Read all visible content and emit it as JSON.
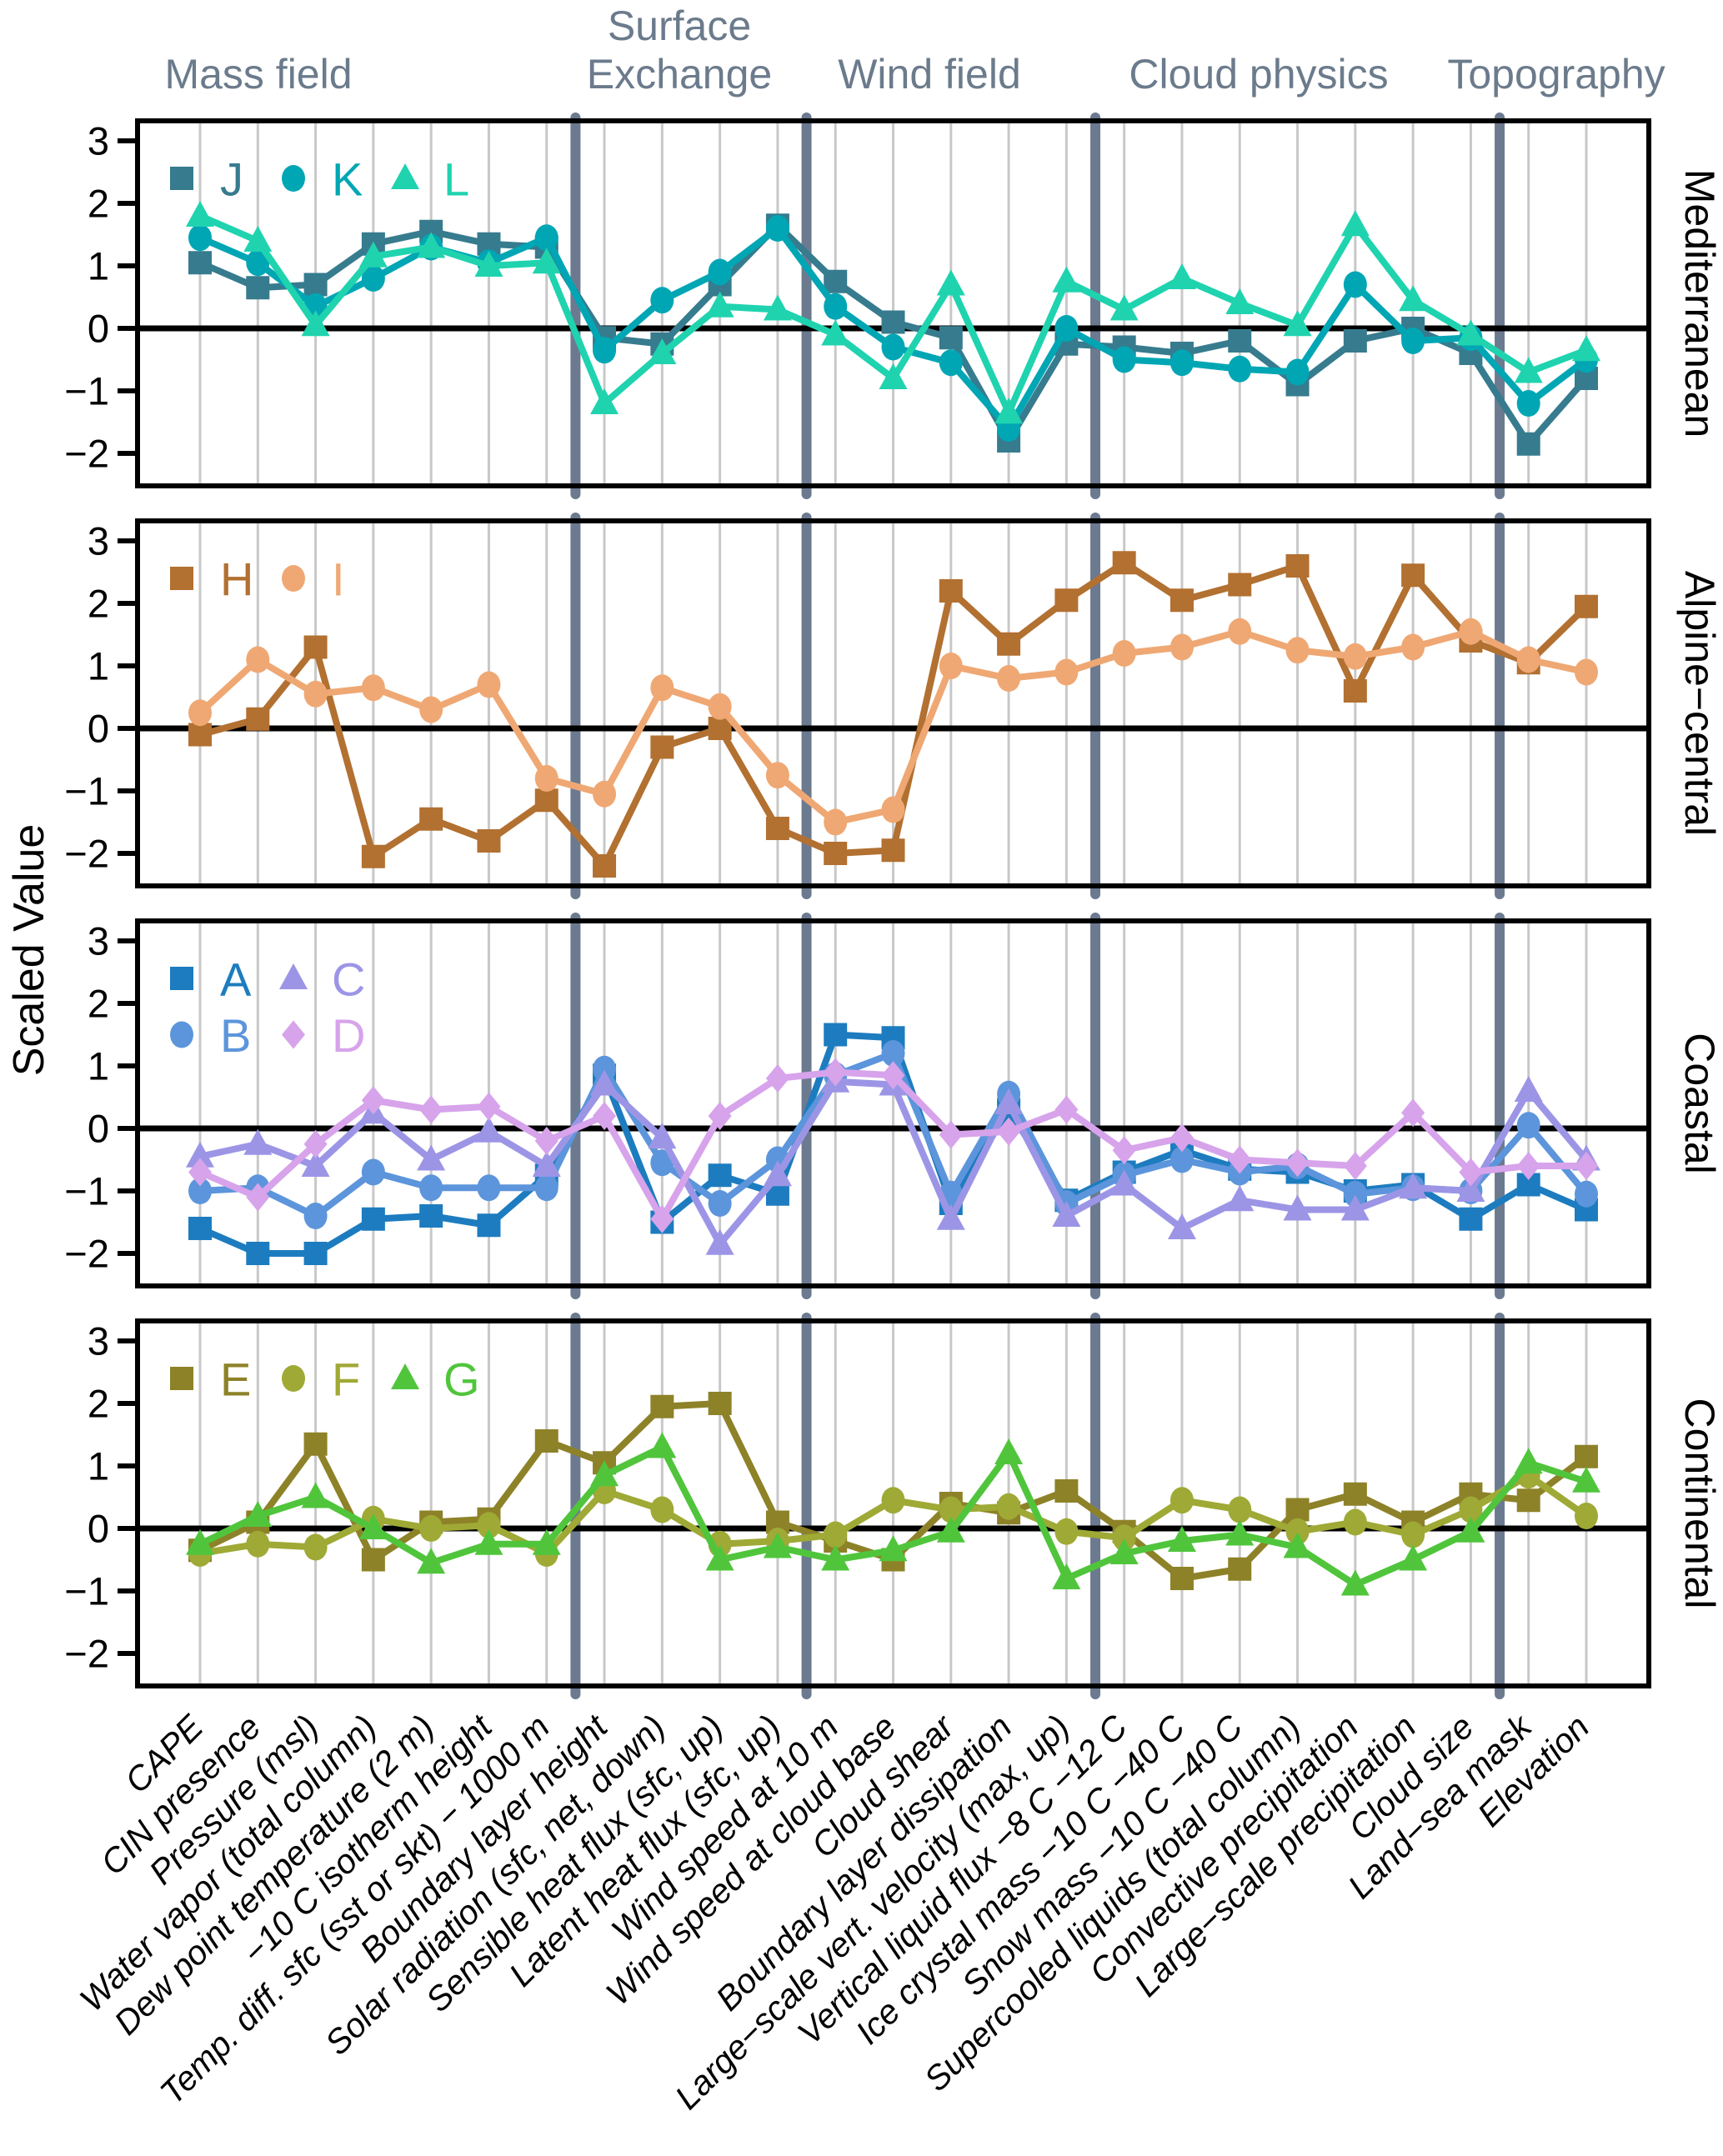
{
  "chart_data": {
    "type": "line",
    "y_axis_label": "Scaled Value",
    "ylim": [
      -2.55,
      3.3
    ],
    "yticks": [
      "3",
      "2",
      "1",
      "0",
      "−1",
      "−2"
    ],
    "ytick_values": [
      3,
      2,
      1,
      0,
      -1,
      -2
    ],
    "grid": true,
    "legend_position": "top-left-inside",
    "style": {
      "grid_color": "#C8C8C8",
      "separator_color": "#6C7A90",
      "header_color": "#6B7B8C",
      "zero_line_color": "#000000",
      "border_color": "#000000",
      "text_color": "#000000"
    },
    "categories": [
      "CAPE",
      "CIN presence",
      "Pressure (msl)",
      "Water vapor (total column)",
      "Dew point temperature (2 m)",
      "−10 C isotherm height",
      "Temp. diff. sfc (sst or skt) − 1000 m",
      "Boundary layer height",
      "Solar radiation (sfc, net, down)",
      "Sensible heat flux (sfc, up)",
      "Latent heat flux (sfc, up)",
      "Wind speed at 10 m",
      "Wind speed at cloud base",
      "Cloud shear",
      "Boundary layer dissipation",
      "Large−scale vert. velocity (max, up)",
      "Vertical liquid flux −8 C −12 C",
      "Ice crystal mass −10 C −40 C",
      "Snow mass −10 C −40 C",
      "Supercooled liquids (total column)",
      "Convective precipitation",
      "Large−scale precipitation",
      "Cloud size",
      "Land−sea mask",
      "Elevation"
    ],
    "groups": [
      {
        "label": "Mass field",
        "lines": [
          "Mass field"
        ],
        "span": [
          0,
          6
        ],
        "label_x": 310
      },
      {
        "label": "Surface Exchange",
        "lines": [
          "Surface",
          "Exchange"
        ],
        "span": [
          7,
          10
        ],
        "label_x": 815
      },
      {
        "label": "Wind field",
        "lines": [
          "Wind field"
        ],
        "span": [
          11,
          15
        ],
        "label_x": 1115
      },
      {
        "label": "Cloud physics",
        "lines": [
          "Cloud physics"
        ],
        "span": [
          16,
          22
        ],
        "label_x": 1510
      },
      {
        "label": "Topography",
        "lines": [
          "Topography"
        ],
        "span": [
          23,
          24
        ],
        "label_x": 1867
      }
    ],
    "panels": [
      {
        "label": "Mediterranean",
        "legend_rows": [
          [
            "J",
            "K",
            "L"
          ]
        ],
        "series": [
          {
            "name": "J",
            "marker": "square",
            "color": "#377B8E",
            "values": [
              1.05,
              0.65,
              0.7,
              1.35,
              1.55,
              1.35,
              1.3,
              -0.15,
              -0.25,
              0.7,
              1.65,
              0.75,
              0.1,
              -0.15,
              -1.8,
              -0.25,
              -0.3,
              -0.4,
              -0.2,
              -0.9,
              -0.2,
              0.0,
              -0.4,
              -1.85,
              -0.8
            ]
          },
          {
            "name": "K",
            "marker": "circle",
            "color": "#00A6B4",
            "values": [
              1.45,
              1.05,
              0.35,
              0.8,
              1.3,
              1.05,
              1.45,
              -0.35,
              0.45,
              0.9,
              1.6,
              0.35,
              -0.3,
              -0.55,
              -1.6,
              0.0,
              -0.5,
              -0.55,
              -0.65,
              -0.7,
              0.7,
              -0.2,
              -0.15,
              -1.2,
              -0.5
            ]
          },
          {
            "name": "L",
            "marker": "triangle",
            "color": "#1FD3AF",
            "values": [
              1.8,
              1.4,
              0.05,
              1.15,
              1.3,
              1.0,
              1.05,
              -1.2,
              -0.4,
              0.35,
              0.3,
              -0.1,
              -0.8,
              0.7,
              -1.35,
              0.75,
              0.3,
              0.8,
              0.4,
              0.05,
              1.65,
              0.45,
              -0.1,
              -0.7,
              -0.35
            ]
          }
        ]
      },
      {
        "label": "Alpine−central",
        "legend_rows": [
          [
            "H",
            "I"
          ]
        ],
        "series": [
          {
            "name": "H",
            "marker": "square",
            "color": "#B27031",
            "values": [
              -0.1,
              0.15,
              1.3,
              -2.05,
              -1.45,
              -1.8,
              -1.15,
              -2.2,
              -0.3,
              0.0,
              -1.6,
              -2.0,
              -1.95,
              2.2,
              1.35,
              2.05,
              2.65,
              2.05,
              2.3,
              2.6,
              0.6,
              2.45,
              1.4,
              1.05,
              1.95
            ]
          },
          {
            "name": "I",
            "marker": "circle",
            "color": "#EFA873",
            "values": [
              0.25,
              1.1,
              0.55,
              0.65,
              0.3,
              0.7,
              -0.8,
              -1.05,
              0.65,
              0.35,
              -0.75,
              -1.5,
              -1.3,
              1.0,
              0.8,
              0.9,
              1.2,
              1.3,
              1.55,
              1.25,
              1.15,
              1.3,
              1.55,
              1.1,
              0.9
            ]
          }
        ]
      },
      {
        "label": "Coastal",
        "legend_rows": [
          [
            "A",
            "C"
          ],
          [
            "B",
            "D"
          ]
        ],
        "series": [
          {
            "name": "A",
            "marker": "square",
            "color": "#1D7CBF",
            "values": [
              -1.6,
              -2.0,
              -2.0,
              -1.45,
              -1.4,
              -1.55,
              -0.75,
              0.85,
              -1.5,
              -0.75,
              -1.05,
              1.5,
              1.45,
              -1.2,
              0.3,
              -1.15,
              -0.7,
              -0.35,
              -0.65,
              -0.7,
              -1.0,
              -0.9,
              -1.45,
              -0.9,
              -1.3
            ]
          },
          {
            "name": "B",
            "marker": "circle",
            "color": "#5C95DB",
            "values": [
              -1.0,
              -0.95,
              -1.4,
              -0.7,
              -0.95,
              -0.95,
              -0.95,
              0.95,
              -0.55,
              -1.2,
              -0.5,
              0.85,
              1.2,
              -1.05,
              0.55,
              -1.2,
              -0.75,
              -0.5,
              -0.7,
              -0.6,
              -1.05,
              -0.95,
              -1.0,
              0.05,
              -1.05
            ]
          },
          {
            "name": "C",
            "marker": "triangle",
            "color": "#9C95E6",
            "values": [
              -0.45,
              -0.25,
              -0.6,
              0.25,
              -0.5,
              -0.05,
              -0.6,
              0.7,
              -0.15,
              -1.85,
              -0.75,
              0.75,
              0.7,
              -1.45,
              0.4,
              -1.4,
              -0.9,
              -1.6,
              -1.15,
              -1.3,
              -1.3,
              -0.95,
              -1.0,
              0.6,
              -0.5
            ]
          },
          {
            "name": "D",
            "marker": "diamond",
            "color": "#D7A3EB",
            "values": [
              -0.7,
              -1.1,
              -0.25,
              0.45,
              0.3,
              0.35,
              -0.2,
              0.2,
              -1.45,
              0.2,
              0.8,
              0.9,
              0.85,
              -0.1,
              -0.05,
              0.3,
              -0.35,
              -0.15,
              -0.5,
              -0.55,
              -0.6,
              0.25,
              -0.7,
              -0.6,
              -0.6
            ]
          }
        ]
      },
      {
        "label": "Continental",
        "legend_rows": [
          [
            "E",
            "F",
            "G"
          ]
        ],
        "series": [
          {
            "name": "E",
            "marker": "square",
            "color": "#8D8228",
            "values": [
              -0.35,
              0.1,
              1.35,
              -0.5,
              0.1,
              0.15,
              1.4,
              1.05,
              1.95,
              2.0,
              0.1,
              -0.2,
              -0.5,
              0.4,
              0.25,
              0.6,
              -0.05,
              -0.8,
              -0.65,
              0.3,
              0.55,
              0.1,
              0.55,
              0.45,
              1.15
            ]
          },
          {
            "name": "F",
            "marker": "circle",
            "color": "#9FA935",
            "values": [
              -0.4,
              -0.25,
              -0.3,
              0.15,
              0.0,
              0.05,
              -0.4,
              0.6,
              0.3,
              -0.25,
              -0.2,
              -0.1,
              0.45,
              0.3,
              0.35,
              -0.05,
              -0.15,
              0.45,
              0.3,
              -0.05,
              0.1,
              -0.1,
              0.3,
              0.85,
              0.2
            ]
          },
          {
            "name": "G",
            "marker": "triangle",
            "color": "#50C53C",
            "values": [
              -0.25,
              0.2,
              0.5,
              0.0,
              -0.55,
              -0.25,
              -0.25,
              0.85,
              1.3,
              -0.5,
              -0.3,
              -0.5,
              -0.35,
              -0.05,
              1.2,
              -0.8,
              -0.4,
              -0.2,
              -0.1,
              -0.3,
              -0.9,
              -0.5,
              -0.05,
              1.05,
              0.75
            ]
          }
        ]
      }
    ]
  }
}
